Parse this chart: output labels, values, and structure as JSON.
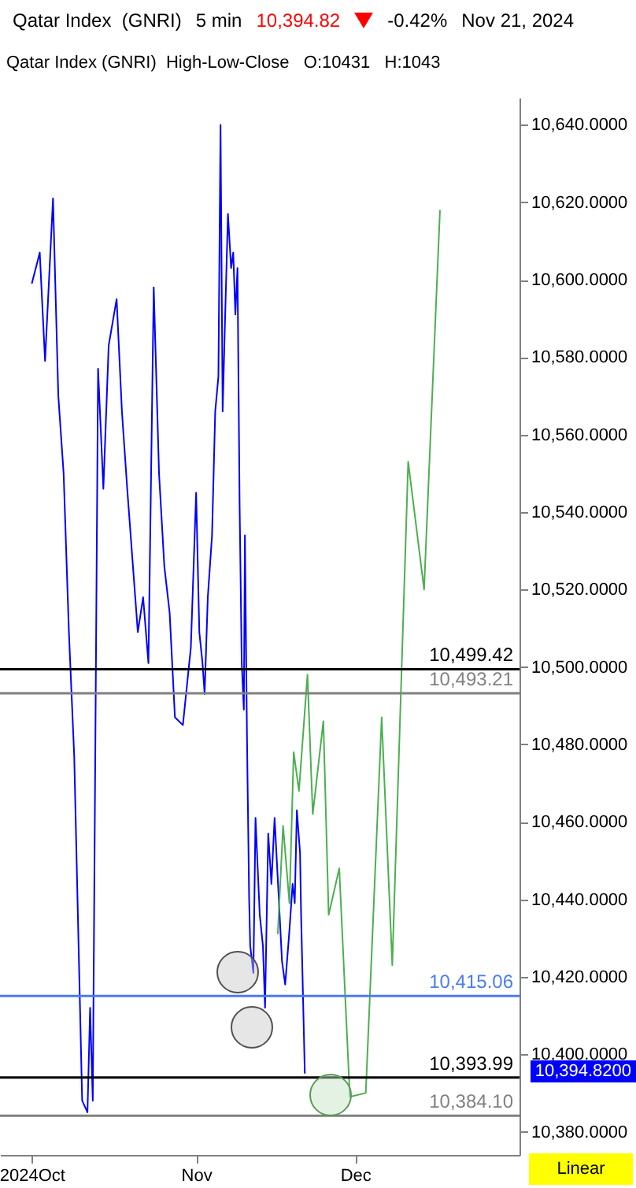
{
  "chart_data": {
    "type": "line",
    "title": "Qatar Index  (GNRI)",
    "subtitle": "Qatar Index (GNRI)  High-Low-Close   O:10431   H:1043",
    "annotations": [
      "5 min",
      "10,394.82",
      "-0.42%",
      "Nov 21, 2024",
      "10,394.8200",
      "Linear"
    ],
    "xlim": [
      "2024-09-25",
      "2025-01-01"
    ],
    "xticks": [
      {
        "value": "2024-10-01",
        "label": "2024Oct"
      },
      {
        "value": "2024-11-01",
        "label": "Nov"
      },
      {
        "value": "2024-12-01",
        "label": "Dec"
      }
    ],
    "ylim": [
      10374,
      10647
    ],
    "yticks": [
      {
        "value": 10380,
        "label": "10,380.0000"
      },
      {
        "value": 10400,
        "label": "10,400.0000"
      },
      {
        "value": 10420,
        "label": "10,420.0000"
      },
      {
        "value": 10440,
        "label": "10,440.0000"
      },
      {
        "value": 10460,
        "label": "10,460.0000"
      },
      {
        "value": 10480,
        "label": "10,480.0000"
      },
      {
        "value": 10500,
        "label": "10,500.0000"
      },
      {
        "value": 10520,
        "label": "10,520.0000"
      },
      {
        "value": 10540,
        "label": "10,540.0000"
      },
      {
        "value": 10560,
        "label": "10,560.0000"
      },
      {
        "value": 10580,
        "label": "10,580.0000"
      },
      {
        "value": 10600,
        "label": "10,600.0000"
      },
      {
        "value": 10620,
        "label": "10,620.0000"
      },
      {
        "value": 10640,
        "label": "10,640.0000"
      }
    ],
    "grid": false,
    "legend": false,
    "marker": "none",
    "line_style": "solid",
    "series": [
      {
        "color": "#0000ff",
        "x": [
          "2024-10-01",
          "2024-10-02T12:00",
          "2024-10-03T12:00",
          "2024-10-05",
          "2024-10-06",
          "2024-10-07",
          "2024-10-08",
          "2024-10-09",
          "2024-10-10T12:00",
          "2024-10-11T12:00",
          "2024-10-12",
          "2024-10-12T12:00",
          "2024-10-13T12:00",
          "2024-10-14T12:00",
          "2024-10-15T12:00",
          "2024-10-17",
          "2024-10-18",
          "2024-10-19",
          "2024-10-21",
          "2024-10-22",
          "2024-10-23",
          "2024-10-24",
          "2024-10-25",
          "2024-10-26",
          "2024-10-27",
          "2024-10-28",
          "2024-10-29T12:00",
          "2024-10-31",
          "2024-11-01",
          "2024-11-01T14:24",
          "2024-11-02T04:48",
          "2024-11-02T14:24",
          "2024-11-03T04:48",
          "2024-11-04",
          "2024-11-04T14:24",
          "2024-11-05T04:48",
          "2024-11-05T14:24",
          "2024-11-06",
          "2024-11-06T09:36",
          "2024-11-07",
          "2024-11-07T14:24",
          "2024-11-08",
          "2024-11-08T09:36",
          "2024-11-08T19:12",
          "2024-11-09T04:48",
          "2024-11-09T14:24",
          "2024-11-10",
          "2024-11-10T04:48",
          "2024-11-10T14:24",
          "2024-11-11",
          "2024-11-11T04:48",
          "2024-11-11T19:12",
          "2024-11-12T04:48",
          "2024-11-13",
          "2024-11-13T14:24",
          "2024-11-14",
          "2024-11-14T14:24",
          "2024-11-15T04:48",
          "2024-11-15T19:12",
          "2024-11-16T14:24",
          "2024-11-17T04:48",
          "2024-11-17T19:12",
          "2024-11-18T14:24",
          "2024-11-19T04:48",
          "2024-11-19T14:24",
          "2024-11-20",
          "2024-11-20T14:24",
          "2024-11-20T19:12",
          "2024-11-21T12:00"
        ],
        "values": [
          10599,
          10607,
          10579,
          10621,
          10570,
          10550,
          10509,
          10477,
          10388,
          10385,
          10412,
          10388,
          10577,
          10546,
          10583,
          10595,
          10566,
          10546,
          10509,
          10518,
          10501,
          10598,
          10550,
          10526,
          10514,
          10487,
          10485,
          10505,
          10545,
          10509,
          10501,
          10493,
          10518,
          10534,
          10566,
          10575,
          10640,
          10566,
          10587,
          10617,
          10603,
          10607,
          10591,
          10603,
          10542,
          10501,
          10489,
          10534,
          10481,
          10440,
          10428,
          10421,
          10461,
          10436,
          10428,
          10412,
          10457,
          10444,
          10461,
          10440,
          10424,
          10418,
          10432,
          10444,
          10439,
          10463,
          10452,
          10436,
          10395
        ]
      },
      {
        "color": "#4caf50",
        "x": [
          "2024-11-16T09:36",
          "2024-11-17T09:36",
          "2024-11-18T14:24",
          "2024-11-19T09:36",
          "2024-11-20T09:36",
          "2024-11-22",
          "2024-11-23",
          "2024-11-25",
          "2024-11-26",
          "2024-11-28",
          "2024-11-30",
          "2024-12-03",
          "2024-12-06",
          "2024-12-08",
          "2024-12-11",
          "2024-12-14",
          "2024-12-17"
        ],
        "values": [
          10431,
          10459,
          10439,
          10478,
          10468,
          10498,
          10462,
          10486,
          10436,
          10448,
          10389,
          10390,
          10487,
          10423,
          10553,
          10520,
          10618
        ]
      }
    ],
    "ref_lines": [
      {
        "axis": "y",
        "value": 10499.42,
        "label": "10,499.42",
        "color": "#000000"
      },
      {
        "axis": "y",
        "value": 10493.21,
        "label": "10,493.21",
        "color": "#808080"
      },
      {
        "axis": "y",
        "value": 10415.06,
        "label": "10,415.06",
        "color": "#4a7cf0"
      },
      {
        "axis": "y",
        "value": 10393.99,
        "label": "10,393.99",
        "color": "#000000"
      },
      {
        "axis": "y",
        "value": 10384.1,
        "label": "10,384.10",
        "color": "#808080"
      }
    ]
  }
}
